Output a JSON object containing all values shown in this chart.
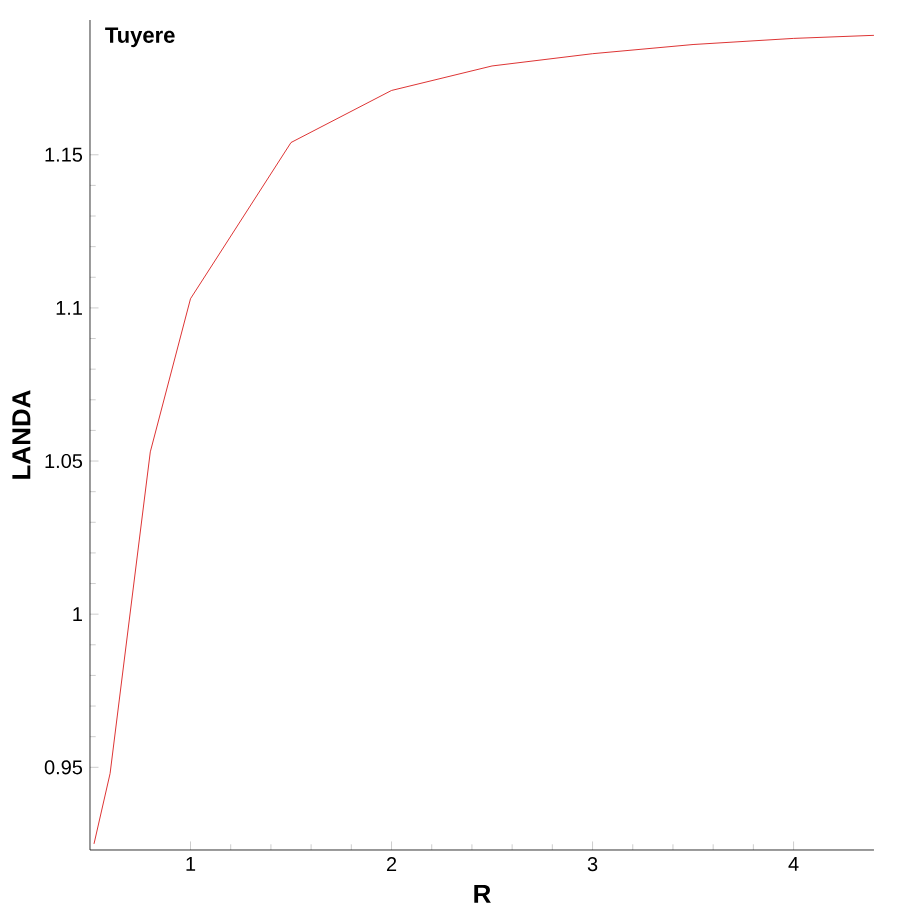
{
  "chart_data": {
    "type": "line",
    "title": "Tuyere",
    "xlabel": "R",
    "ylabel": "LANDA",
    "x": [
      0.52,
      0.6,
      0.8,
      1,
      1.5,
      2,
      2.5,
      3,
      3.5,
      4,
      4.4
    ],
    "series": [
      {
        "color": "#d40000",
        "values": [
          0.925,
          0.948,
          1.053,
          1.103,
          1.154,
          1.171,
          1.179,
          1.183,
          1.186,
          1.188,
          1.189
        ]
      }
    ],
    "xlim": [
      0.5,
      4.4
    ],
    "ylim": [
      0.923,
      1.194
    ],
    "xticks": [
      1,
      2,
      3,
      4
    ],
    "yticks": [
      0.95,
      1,
      1.05,
      1.1,
      1.15
    ],
    "grid": false,
    "marker": "none",
    "line_style": "solid"
  }
}
